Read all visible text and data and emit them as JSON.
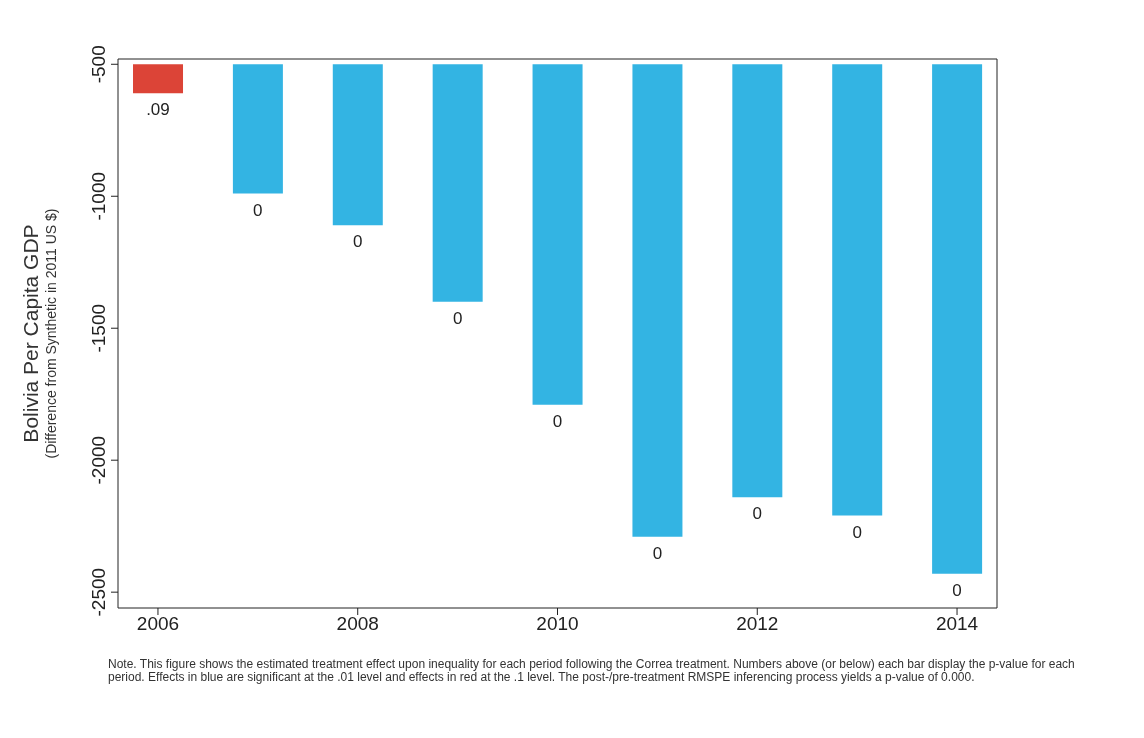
{
  "chart_data": {
    "type": "bar",
    "ylabel": "Bolivia Per Capita GDP\n(Difference from Synthetic in 2011 US $)",
    "x": [
      2006,
      2007,
      2008,
      2009,
      2010,
      2011,
      2012,
      2013,
      2014
    ],
    "base": [
      -500,
      -500,
      -500,
      -500,
      -500,
      -500,
      -500,
      -500,
      -500
    ],
    "values": [
      -110,
      -490,
      -610,
      -900,
      -1290,
      -1790,
      -1640,
      -1710,
      -1930
    ],
    "colors": [
      "#dc4437",
      "#33b4e3",
      "#33b4e3",
      "#33b4e3",
      "#33b4e3",
      "#33b4e3",
      "#33b4e3",
      "#33b4e3",
      "#33b4e3"
    ],
    "xlim": [
      2005.6,
      2014.4
    ],
    "xticks": [
      2006,
      2008,
      2010,
      2012,
      2014
    ],
    "ylim": [
      -2560,
      -480
    ],
    "yticks": [
      -500,
      -1000,
      -1500,
      -2000,
      -2500
    ],
    "grid": false,
    "legend": false,
    "annotations": [
      {
        "text": ".09",
        "x": 2006,
        "y": -610
      },
      {
        "text": "0",
        "x": 2007,
        "y": -990
      },
      {
        "text": "0",
        "x": 2008,
        "y": -1110
      },
      {
        "text": "0",
        "x": 2009,
        "y": -1400
      },
      {
        "text": "0",
        "x": 2010,
        "y": -1790
      },
      {
        "text": "0",
        "x": 2011,
        "y": -2290
      },
      {
        "text": "0",
        "x": 2012,
        "y": -2140
      },
      {
        "text": "0",
        "x": 2013,
        "y": -2210
      },
      {
        "text": "0",
        "x": 2014,
        "y": -2430
      },
      "Note. This figure shows the estimated treatment effect upon inequality for each period following the Correa treatment. Numbers above (or below) each bar display the p-value for each period. Effects in blue are significant at the .01 level and effects in red at the .1 level. The post-/pre-treatment RMSPE inferencing process yields a p-value of 0.000."
    ]
  }
}
